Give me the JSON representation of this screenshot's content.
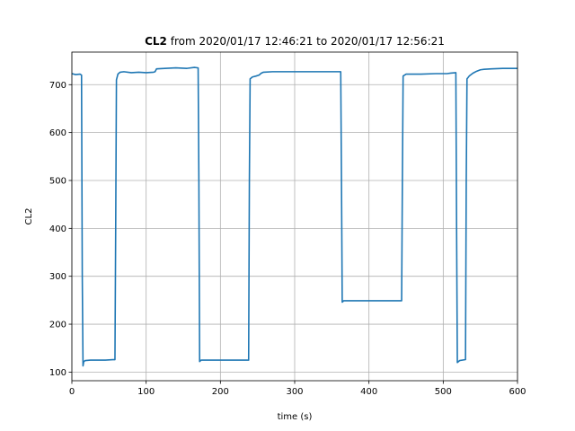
{
  "chart_data": {
    "type": "line",
    "title_bold": "CL2",
    "title_rest": " from 2020/01/17 12:46:21 to 2020/01/17 12:56:21",
    "xlabel": "time (s)",
    "ylabel": "CL2",
    "xlim": [
      0,
      600
    ],
    "ylim": [
      82,
      768
    ],
    "xticks": [
      0,
      100,
      200,
      300,
      400,
      500,
      600
    ],
    "yticks": [
      100,
      200,
      300,
      400,
      500,
      600,
      700
    ],
    "grid": true,
    "series": [
      {
        "color": "#1f77b4",
        "points": [
          [
            0,
            723
          ],
          [
            5,
            721
          ],
          [
            11,
            722
          ],
          [
            13,
            720
          ],
          [
            14,
            300
          ],
          [
            15,
            113
          ],
          [
            16,
            122
          ],
          [
            18,
            124
          ],
          [
            25,
            125
          ],
          [
            35,
            125
          ],
          [
            45,
            125
          ],
          [
            55,
            126
          ],
          [
            58,
            126
          ],
          [
            59,
            400
          ],
          [
            60,
            710
          ],
          [
            62,
            722
          ],
          [
            65,
            726
          ],
          [
            70,
            727
          ],
          [
            80,
            725
          ],
          [
            90,
            726
          ],
          [
            100,
            725
          ],
          [
            110,
            726
          ],
          [
            112,
            727
          ],
          [
            114,
            733
          ],
          [
            125,
            734
          ],
          [
            140,
            735
          ],
          [
            155,
            734
          ],
          [
            165,
            736
          ],
          [
            170,
            735
          ],
          [
            171,
            500
          ],
          [
            172,
            122
          ],
          [
            174,
            125
          ],
          [
            185,
            125
          ],
          [
            200,
            125
          ],
          [
            215,
            125
          ],
          [
            228,
            125
          ],
          [
            238,
            125
          ],
          [
            239,
            500
          ],
          [
            240,
            712
          ],
          [
            243,
            716
          ],
          [
            248,
            718
          ],
          [
            252,
            720
          ],
          [
            255,
            724
          ],
          [
            258,
            726
          ],
          [
            270,
            727
          ],
          [
            290,
            727
          ],
          [
            310,
            727
          ],
          [
            330,
            727
          ],
          [
            345,
            727
          ],
          [
            360,
            727
          ],
          [
            362,
            727
          ],
          [
            363,
            500
          ],
          [
            364,
            246
          ],
          [
            366,
            249
          ],
          [
            380,
            249
          ],
          [
            400,
            249
          ],
          [
            420,
            249
          ],
          [
            435,
            249
          ],
          [
            444,
            249
          ],
          [
            445,
            500
          ],
          [
            446,
            718
          ],
          [
            450,
            722
          ],
          [
            470,
            722
          ],
          [
            490,
            723
          ],
          [
            505,
            723
          ],
          [
            510,
            724
          ],
          [
            517,
            725
          ],
          [
            518,
            400
          ],
          [
            519,
            120
          ],
          [
            522,
            124
          ],
          [
            530,
            126
          ],
          [
            531,
            500
          ],
          [
            532,
            712
          ],
          [
            535,
            718
          ],
          [
            540,
            724
          ],
          [
            545,
            728
          ],
          [
            550,
            731
          ],
          [
            555,
            732
          ],
          [
            565,
            733
          ],
          [
            580,
            734
          ],
          [
            595,
            734
          ],
          [
            600,
            734
          ]
        ]
      }
    ]
  }
}
